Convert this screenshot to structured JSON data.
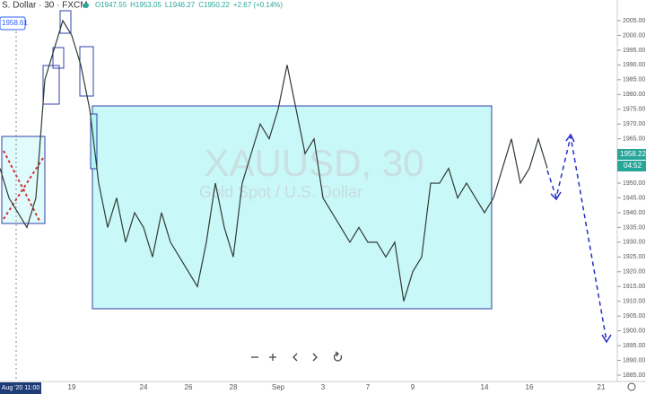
{
  "chart_data": {
    "type": "line",
    "symbol": "S. Dollar · 30 · FXCM",
    "ohlc": [
      "O1947.55",
      "H1953.05",
      "L1946.27",
      "C1950.22",
      "+2.67 (+0.14%)"
    ],
    "watermark": "XAUUSD, 30",
    "watermark_sub": "Gold Spot / U.S. Dollar",
    "last_price": "1958.22",
    "countdown": "04:52",
    "crosshair_price": "1958.61",
    "categories": [
      null,
      null,
      "Aug '20  11:00",
      null,
      null,
      null,
      null,
      null,
      "19",
      null,
      null,
      null,
      null,
      null,
      null,
      null,
      "24",
      null,
      null,
      null,
      null,
      "26",
      null,
      null,
      null,
      null,
      "28",
      null,
      null,
      null,
      null,
      "Sep",
      null,
      null,
      null,
      null,
      "3",
      null,
      null,
      null,
      null,
      "7",
      null,
      null,
      null,
      null,
      "9",
      null,
      null,
      null,
      null,
      null,
      null,
      null,
      "14",
      null,
      null,
      null,
      null,
      "16",
      null,
      null,
      null,
      null,
      null,
      null,
      null,
      "21"
    ],
    "series": [
      {
        "color": "#2f3b35",
        "values": [
          1955,
          1945,
          1940,
          1935,
          1945,
          1985,
          1995,
          2005,
          2000,
          1990,
          1975,
          1950,
          1935,
          1945,
          1930,
          1940,
          1935,
          1925,
          1940,
          1930,
          1925,
          1920,
          1915,
          1930,
          1950,
          1935,
          1925,
          1950,
          1960,
          1970,
          1965,
          1975,
          1990,
          1975,
          1960,
          1965,
          1945,
          1940,
          1935,
          1930,
          1935,
          1930,
          1930,
          1925,
          1930,
          1910,
          1920,
          1925,
          1950,
          1950,
          1955,
          1945,
          1950,
          1945,
          1940,
          1945,
          1955,
          1965,
          1950,
          1955,
          1965,
          1955,
          null,
          null,
          null,
          null,
          null,
          null
        ]
      }
    ],
    "ylim": [
      1882,
      2010
    ],
    "yticks": [
      {
        "value": 1885,
        "label": "1885.00"
      },
      {
        "value": 1890,
        "label": "1890.00"
      },
      {
        "value": 1895,
        "label": "1895.00"
      },
      {
        "value": 1900,
        "label": "1900.00"
      },
      {
        "value": 1905,
        "label": "1905.00"
      },
      {
        "value": 1910,
        "label": "1910.00"
      },
      {
        "value": 1915,
        "label": "1915.00"
      },
      {
        "value": 1920,
        "label": "1920.00"
      },
      {
        "value": 1925,
        "label": "1925.00"
      },
      {
        "value": 1930,
        "label": "1930.00"
      },
      {
        "value": 1935,
        "label": "1935.00"
      },
      {
        "value": 1940,
        "label": "1940.00"
      },
      {
        "value": 1945,
        "label": "1945.00"
      },
      {
        "value": 1950,
        "label": "1950.00"
      },
      {
        "value": 1955,
        "label": "1955.00"
      },
      {
        "value": 1960,
        "label": "1960.00"
      },
      {
        "value": 1965,
        "label": "1965.00"
      },
      {
        "value": 1970,
        "label": "1970.00"
      },
      {
        "value": 1975,
        "label": "1975.00"
      },
      {
        "value": 1980,
        "label": "1980.00"
      },
      {
        "value": 1985,
        "label": "1985.00"
      },
      {
        "value": 1990,
        "label": "1990.00"
      },
      {
        "value": 1995,
        "label": "1995.00"
      },
      {
        "value": 2000,
        "label": "2000.00"
      },
      {
        "value": 2005,
        "label": "2005.00"
      }
    ]
  }
}
